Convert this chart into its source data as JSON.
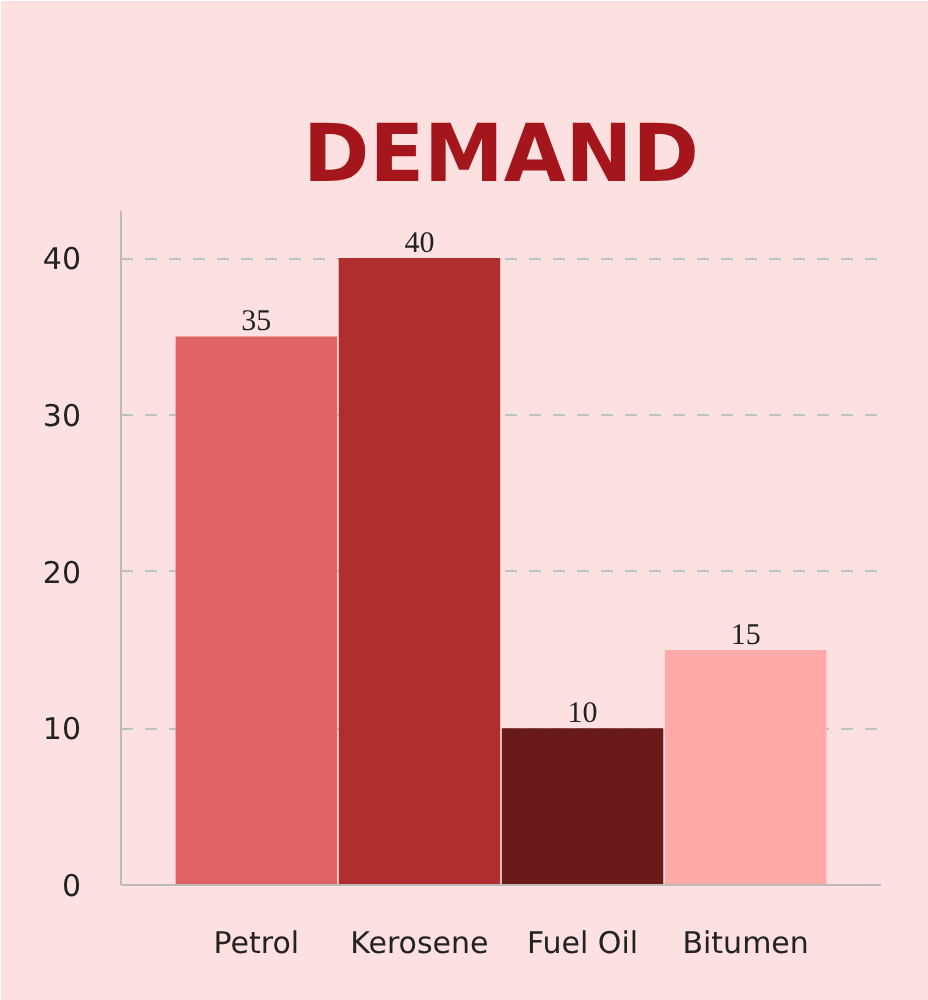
{
  "chart_data": {
    "type": "bar",
    "title": "DEMAND",
    "categories": [
      "Petrol",
      "Kerosene",
      "Fuel Oil",
      "Bitumen"
    ],
    "values": [
      35,
      40,
      10,
      15
    ],
    "colors": [
      "#e06262",
      "#b02e2e",
      "#6b1a1a",
      "#ffa8a8"
    ],
    "ylim": [
      0,
      43
    ],
    "yticks": [
      0,
      10,
      20,
      30,
      40
    ],
    "grid": "y",
    "data_labels": true
  }
}
